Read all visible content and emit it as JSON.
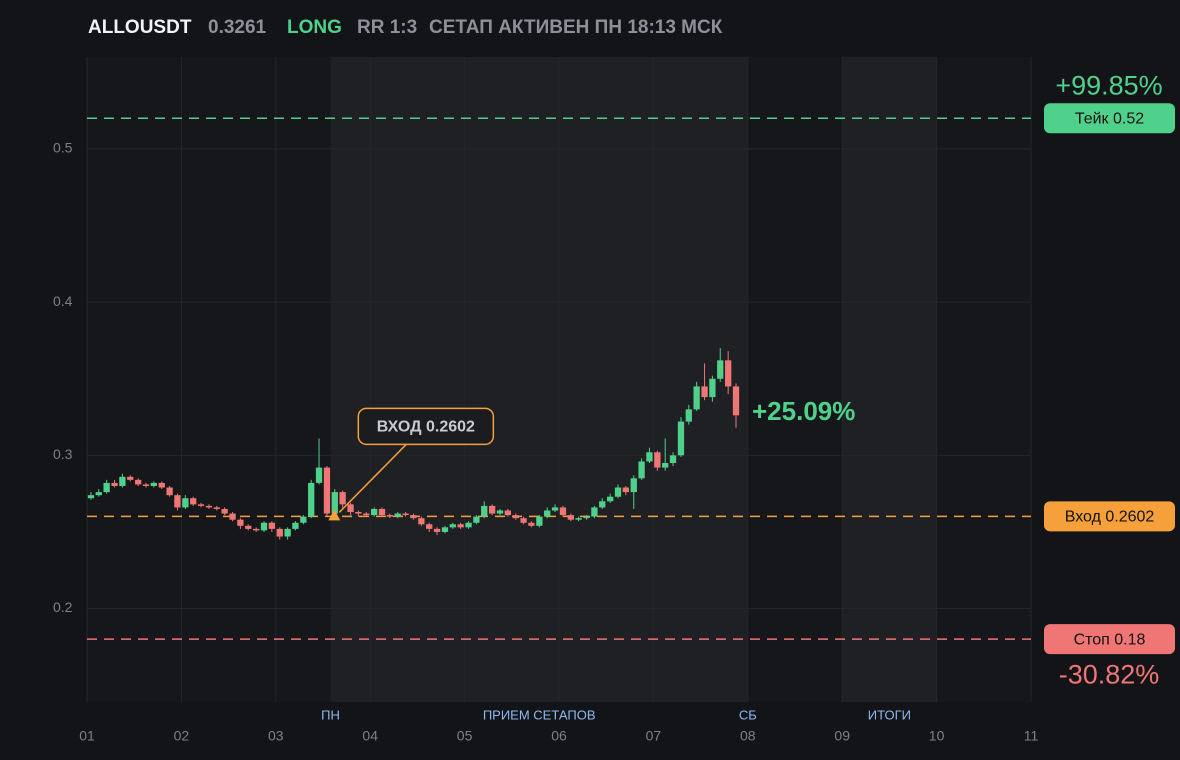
{
  "header": {
    "symbol": "ALLOUSDT",
    "price": "0.3261",
    "side": "LONG",
    "rr": "RR 1:3",
    "status": "СЕТАП АКТИВЕН ПН 18:13 МСК"
  },
  "chart_data": {
    "type": "candlestick",
    "x": [
      1.042,
      1.125,
      1.208,
      1.292,
      1.375,
      1.458,
      1.542,
      1.625,
      1.708,
      1.792,
      1.875,
      1.958,
      2.042,
      2.125,
      2.208,
      2.292,
      2.375,
      2.458,
      2.542,
      2.625,
      2.708,
      2.792,
      2.875,
      2.958,
      3.042,
      3.125,
      3.208,
      3.292,
      3.375,
      3.458,
      3.542,
      3.625,
      3.708,
      3.792,
      3.875,
      3.958,
      4.042,
      4.125,
      4.208,
      4.292,
      4.375,
      4.458,
      4.542,
      4.625,
      4.708,
      4.792,
      4.875,
      4.958,
      5.042,
      5.125,
      5.208,
      5.292,
      5.375,
      5.458,
      5.542,
      5.625,
      5.708,
      5.792,
      5.875,
      5.958,
      6.042,
      6.125,
      6.208,
      6.292,
      6.375,
      6.458,
      6.542,
      6.625,
      6.708,
      6.792,
      6.875,
      6.958,
      7.042,
      7.125,
      7.208,
      7.292,
      7.375,
      7.458,
      7.542,
      7.625,
      7.708,
      7.792,
      7.875
    ],
    "open": [
      0.272,
      0.274,
      0.276,
      0.282,
      0.28,
      0.286,
      0.284,
      0.281,
      0.28,
      0.282,
      0.279,
      0.274,
      0.266,
      0.272,
      0.268,
      0.267,
      0.266,
      0.265,
      0.262,
      0.258,
      0.254,
      0.252,
      0.251,
      0.256,
      0.252,
      0.247,
      0.252,
      0.256,
      0.26,
      0.282,
      0.292,
      0.262,
      0.276,
      0.268,
      0.263,
      0.262,
      0.261,
      0.265,
      0.261,
      0.26,
      0.262,
      0.261,
      0.259,
      0.255,
      0.252,
      0.25,
      0.253,
      0.255,
      0.253,
      0.256,
      0.26,
      0.267,
      0.262,
      0.264,
      0.261,
      0.259,
      0.256,
      0.254,
      0.26,
      0.264,
      0.266,
      0.261,
      0.258,
      0.259,
      0.26,
      0.266,
      0.27,
      0.273,
      0.279,
      0.276,
      0.285,
      0.296,
      0.302,
      0.292,
      0.295,
      0.3,
      0.322,
      0.33,
      0.345,
      0.338,
      0.35,
      0.362,
      0.345
    ],
    "high": [
      0.276,
      0.278,
      0.284,
      0.284,
      0.288,
      0.287,
      0.285,
      0.282,
      0.283,
      0.283,
      0.28,
      0.275,
      0.274,
      0.273,
      0.269,
      0.268,
      0.267,
      0.266,
      0.263,
      0.259,
      0.255,
      0.253,
      0.257,
      0.257,
      0.253,
      0.253,
      0.257,
      0.261,
      0.284,
      0.311,
      0.293,
      0.278,
      0.277,
      0.269,
      0.264,
      0.263,
      0.266,
      0.266,
      0.262,
      0.263,
      0.263,
      0.262,
      0.26,
      0.256,
      0.253,
      0.254,
      0.256,
      0.256,
      0.257,
      0.261,
      0.27,
      0.268,
      0.265,
      0.265,
      0.262,
      0.26,
      0.257,
      0.261,
      0.266,
      0.268,
      0.267,
      0.262,
      0.26,
      0.261,
      0.267,
      0.272,
      0.275,
      0.281,
      0.28,
      0.287,
      0.298,
      0.305,
      0.303,
      0.311,
      0.302,
      0.325,
      0.333,
      0.348,
      0.36,
      0.352,
      0.37,
      0.368,
      0.347
    ],
    "low": [
      0.271,
      0.273,
      0.275,
      0.279,
      0.279,
      0.283,
      0.28,
      0.279,
      0.279,
      0.278,
      0.273,
      0.264,
      0.265,
      0.267,
      0.266,
      0.265,
      0.264,
      0.261,
      0.257,
      0.252,
      0.251,
      0.25,
      0.25,
      0.25,
      0.245,
      0.245,
      0.251,
      0.255,
      0.259,
      0.281,
      0.26,
      0.261,
      0.266,
      0.261,
      0.26,
      0.26,
      0.26,
      0.26,
      0.259,
      0.259,
      0.26,
      0.258,
      0.254,
      0.25,
      0.248,
      0.249,
      0.252,
      0.252,
      0.252,
      0.255,
      0.259,
      0.261,
      0.261,
      0.26,
      0.258,
      0.255,
      0.253,
      0.253,
      0.259,
      0.263,
      0.26,
      0.257,
      0.257,
      0.258,
      0.259,
      0.265,
      0.269,
      0.272,
      0.274,
      0.265,
      0.284,
      0.295,
      0.29,
      0.29,
      0.293,
      0.299,
      0.32,
      0.329,
      0.336,
      0.335,
      0.348,
      0.34,
      0.318
    ],
    "close": [
      0.274,
      0.276,
      0.282,
      0.28,
      0.286,
      0.284,
      0.281,
      0.28,
      0.282,
      0.279,
      0.274,
      0.266,
      0.272,
      0.268,
      0.267,
      0.266,
      0.265,
      0.262,
      0.258,
      0.254,
      0.252,
      0.251,
      0.256,
      0.252,
      0.247,
      0.252,
      0.256,
      0.26,
      0.282,
      0.292,
      0.262,
      0.276,
      0.268,
      0.263,
      0.262,
      0.261,
      0.265,
      0.261,
      0.26,
      0.262,
      0.261,
      0.259,
      0.255,
      0.252,
      0.25,
      0.253,
      0.255,
      0.253,
      0.256,
      0.26,
      0.267,
      0.262,
      0.264,
      0.261,
      0.259,
      0.256,
      0.254,
      0.26,
      0.264,
      0.266,
      0.261,
      0.258,
      0.259,
      0.26,
      0.266,
      0.27,
      0.273,
      0.279,
      0.276,
      0.285,
      0.296,
      0.302,
      0.292,
      0.295,
      0.3,
      0.322,
      0.33,
      0.345,
      0.338,
      0.35,
      0.362,
      0.345,
      0.3261
    ],
    "up_color": "#4fd18b",
    "down_color": "#f07676",
    "xlim": [
      1,
      11
    ],
    "xticks": [
      {
        "value": 1,
        "label": "01"
      },
      {
        "value": 2,
        "label": "02"
      },
      {
        "value": 3,
        "label": "03"
      },
      {
        "value": 4,
        "label": "04"
      },
      {
        "value": 5,
        "label": "05"
      },
      {
        "value": 6,
        "label": "06"
      },
      {
        "value": 7,
        "label": "07"
      },
      {
        "value": 8,
        "label": "08"
      },
      {
        "value": 9,
        "label": "09"
      },
      {
        "value": 10,
        "label": "10"
      },
      {
        "value": 11,
        "label": "11"
      }
    ],
    "ylim": [
      0.139,
      0.56
    ],
    "yticks": [
      0.2,
      0.3,
      0.4,
      0.5
    ],
    "grid": true,
    "regions": [
      {
        "start": 3.58,
        "end": 8,
        "start_label": "ПН",
        "label": "ПРИЕМ СЕТАПОВ",
        "end_label": "СБ"
      },
      {
        "start": 9,
        "end": 10,
        "label": "ИТОГИ"
      }
    ],
    "levels": [
      {
        "label": "Тейк 0.52",
        "value": 0.52,
        "color": "#4fd18b",
        "change": "+99.85%"
      },
      {
        "label": "Вход 0.2602",
        "value": 0.2602,
        "color": "#f5a03a"
      },
      {
        "label": "Стоп 0.18",
        "value": 0.18,
        "color": "#f07676",
        "change": "-30.82%"
      }
    ],
    "annotation": {
      "text": "ВХОД 0.2602",
      "x": 3.62,
      "y": 0.2602,
      "color": "#f5a03a"
    },
    "last_change": "+25.09%"
  }
}
